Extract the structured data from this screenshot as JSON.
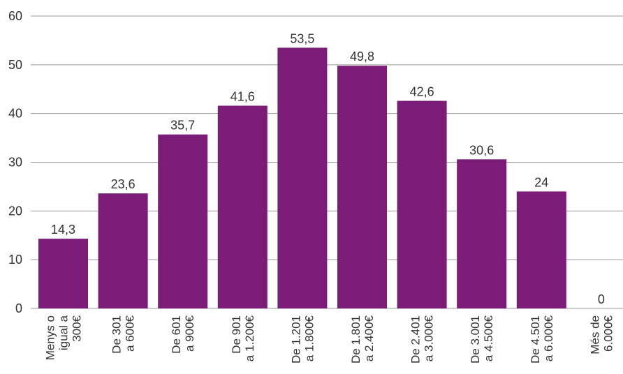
{
  "chart_data": {
    "type": "bar",
    "categories": [
      [
        "Menys o",
        "igual a",
        "300€"
      ],
      [
        "De 301",
        "a 600€"
      ],
      [
        "De 601",
        "a 900€"
      ],
      [
        "De 901",
        "a 1.200€"
      ],
      [
        "De 1.201",
        "a 1.800€"
      ],
      [
        "De 1.801",
        "a 2.400€"
      ],
      [
        "De 2.401",
        "a 3.000€"
      ],
      [
        "De 3.001",
        "a 4.500€"
      ],
      [
        "De 4.501",
        "a 6.000€"
      ],
      [
        "Més de",
        "6.000€"
      ]
    ],
    "values": [
      14.3,
      23.6,
      35.7,
      41.6,
      53.5,
      49.8,
      42.6,
      30.6,
      24,
      0
    ],
    "data_labels": [
      "14,3",
      "23,6",
      "35,7",
      "41,6",
      "53,5",
      "49,8",
      "42,6",
      "30,6",
      "24",
      "0"
    ],
    "yticks": [
      0,
      10,
      20,
      30,
      40,
      50,
      60
    ],
    "ylim": [
      0,
      60
    ],
    "grid": true,
    "bar_color": "#7b1c78",
    "grid_color": "#999999",
    "title": "",
    "xlabel": "",
    "ylabel": ""
  }
}
